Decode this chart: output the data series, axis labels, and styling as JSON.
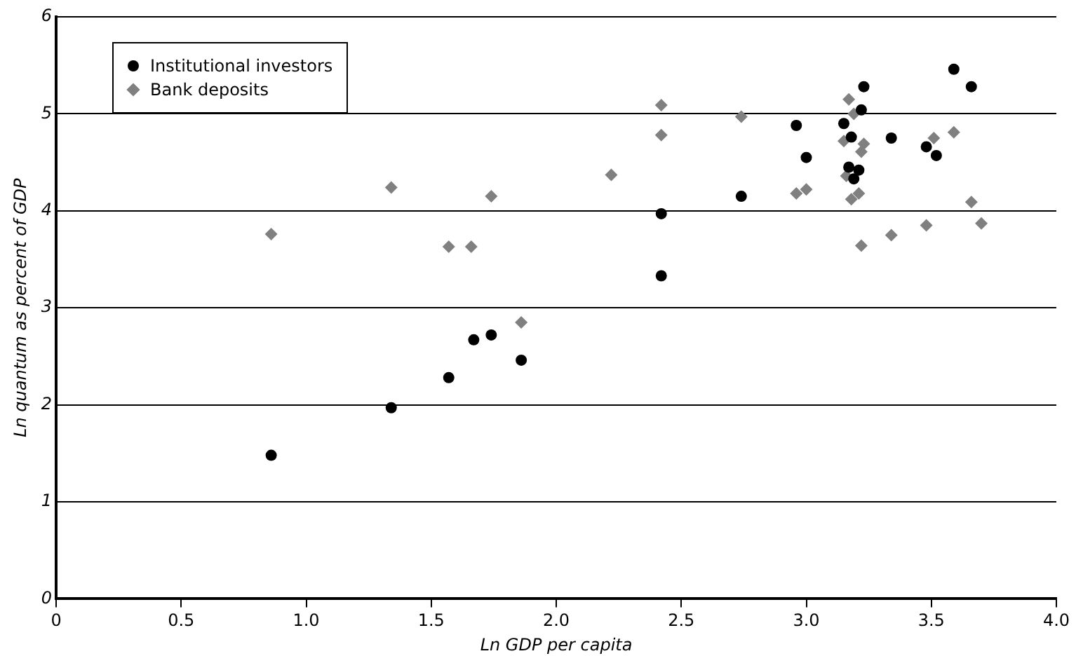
{
  "chart_data": {
    "type": "scatter",
    "xlabel": "Ln GDP per capita",
    "ylabel": "Ln quantum as percent of GDP",
    "xlim": [
      0,
      4
    ],
    "xticks": [
      0,
      {
        "value": 0.5,
        "label": "0.5"
      },
      {
        "value": 1,
        "label": "1.0"
      },
      {
        "value": 1.5,
        "label": "1.5"
      },
      {
        "value": 2,
        "label": "2.0"
      },
      {
        "value": 2.5,
        "label": "2.5"
      },
      {
        "value": 3,
        "label": "3.0"
      },
      {
        "value": 3.5,
        "label": "3.5"
      },
      {
        "value": 4,
        "label": "4.0"
      }
    ],
    "ylim": [
      0,
      6
    ],
    "yticks": [
      0,
      1,
      2,
      3,
      4,
      5,
      6
    ],
    "grid": "y",
    "legend": "top left",
    "series": [
      {
        "name": "Institutional investors",
        "color": "#000000",
        "marker": "circle",
        "x": [
          0.86,
          1.34,
          1.57,
          1.67,
          1.74,
          1.86,
          2.42,
          2.42,
          2.74,
          2.96,
          3.0,
          3.15,
          3.18,
          3.22,
          3.23,
          3.17,
          3.21,
          3.19,
          3.34,
          3.48,
          3.52,
          3.59,
          3.66
        ],
        "values": [
          1.48,
          1.97,
          2.28,
          2.67,
          2.72,
          2.46,
          3.33,
          3.97,
          4.15,
          4.88,
          4.55,
          4.9,
          4.76,
          5.04,
          5.28,
          4.45,
          4.42,
          4.33,
          4.75,
          4.66,
          4.57,
          5.46,
          5.28
        ]
      },
      {
        "name": "Bank deposits",
        "color": "#808080",
        "marker": "diamond",
        "x": [
          0.86,
          1.34,
          1.57,
          1.66,
          1.74,
          1.86,
          2.22,
          2.42,
          2.42,
          2.74,
          2.96,
          3.0,
          3.17,
          3.19,
          3.15,
          3.23,
          3.22,
          3.16,
          3.21,
          3.18,
          3.22,
          3.34,
          3.48,
          3.51,
          3.59,
          3.66,
          3.7
        ],
        "values": [
          3.76,
          4.24,
          3.63,
          3.63,
          4.15,
          2.85,
          4.37,
          5.09,
          4.78,
          4.97,
          4.18,
          4.22,
          5.15,
          5.0,
          4.72,
          4.69,
          4.61,
          4.36,
          4.18,
          4.12,
          3.64,
          3.75,
          3.85,
          4.75,
          4.81,
          4.09,
          3.87
        ]
      }
    ]
  }
}
